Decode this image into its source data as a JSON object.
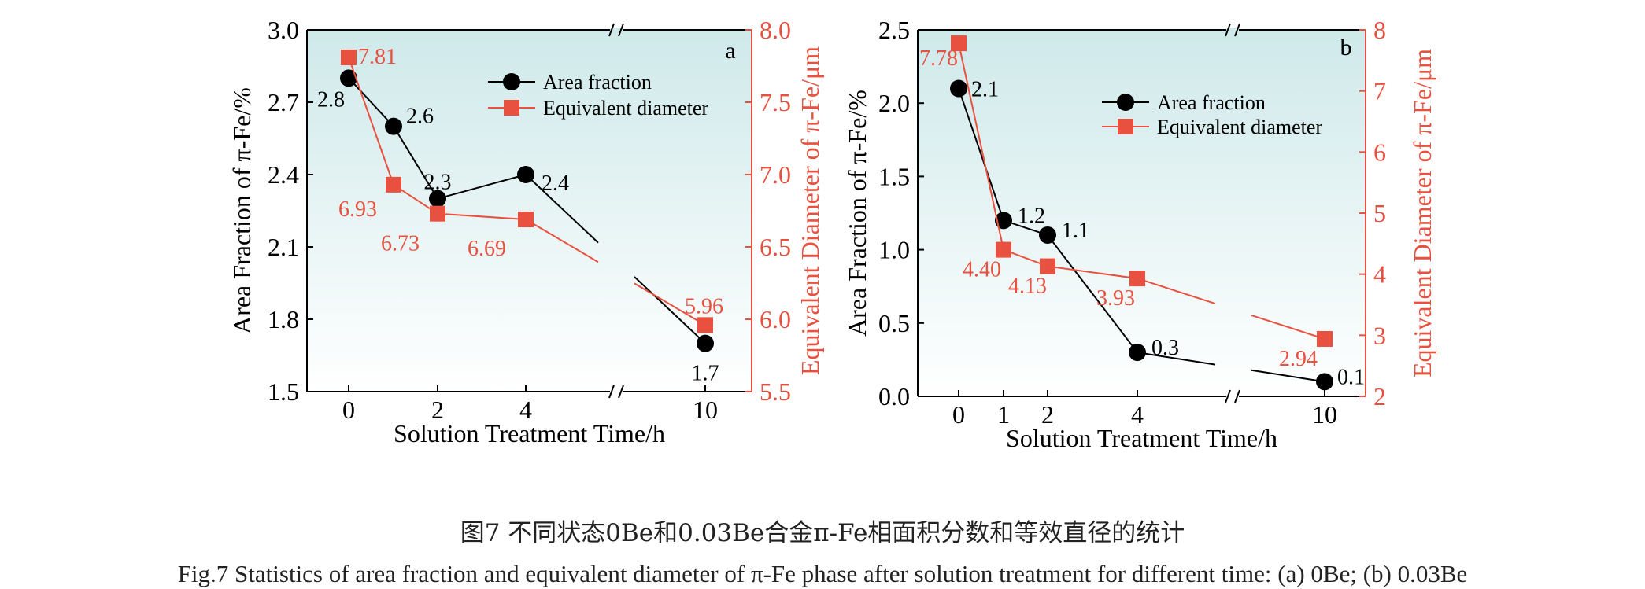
{
  "chart_data": [
    {
      "type": "line",
      "panel_label": "a",
      "x_ticks": [
        "0",
        "2",
        "4",
        "10"
      ],
      "xlabel": "Solution Treatment Time/h",
      "ylabel_left": "Area Fraction of π-Fe/%",
      "ylabel_right": "Equivalent Diameter of π-Fe/μm",
      "ylim_left": [
        1.5,
        3.0
      ],
      "ylim_right": [
        5.5,
        8.0
      ],
      "yticks_left": [
        "1.5",
        "1.8",
        "2.1",
        "2.4",
        "2.7",
        "3.0"
      ],
      "yticks_right": [
        "5.5",
        "6.0",
        "6.5",
        "7.0",
        "7.5",
        "8.0"
      ],
      "axis_break": true,
      "legend_position": "top-center",
      "series": [
        {
          "name": "Area fraction",
          "axis": "left",
          "color": "#000000",
          "marker": "circle",
          "x": [
            0,
            1,
            2,
            4,
            10
          ],
          "values": [
            2.8,
            2.6,
            2.3,
            2.4,
            1.7
          ],
          "labels": [
            "2.8",
            "2.6",
            "2.3",
            "2.4",
            "1.7"
          ]
        },
        {
          "name": "Equivalent diameter",
          "axis": "right",
          "color": "#e8513f",
          "marker": "square",
          "x": [
            0,
            1,
            2,
            4,
            10
          ],
          "values": [
            7.81,
            6.93,
            6.73,
            6.69,
            5.96
          ],
          "labels": [
            "7.81",
            "6.93",
            "6.73",
            "6.69",
            "5.96"
          ]
        }
      ]
    },
    {
      "type": "line",
      "panel_label": "b",
      "x_ticks": [
        "0",
        "1",
        "2",
        "4",
        "10"
      ],
      "xlabel": "Solution Treatment Time/h",
      "ylabel_left": "Area Fraction of π-Fe/%",
      "ylabel_right": "Equivalent Diameter of π-Fe/μm",
      "ylim_left": [
        0.0,
        2.5
      ],
      "ylim_right": [
        2,
        8
      ],
      "yticks_left": [
        "0.0",
        "0.5",
        "1.0",
        "1.5",
        "2.0",
        "2.5"
      ],
      "yticks_right": [
        "2",
        "3",
        "4",
        "5",
        "6",
        "7",
        "8"
      ],
      "axis_break": true,
      "legend_position": "top-center",
      "series": [
        {
          "name": "Area fraction",
          "axis": "left",
          "color": "#000000",
          "marker": "circle",
          "x": [
            0,
            1,
            2,
            4,
            10
          ],
          "values": [
            2.1,
            1.2,
            1.1,
            0.3,
            0.1
          ],
          "labels": [
            "2.1",
            "1.2",
            "1.1",
            "0.3",
            "0.1"
          ]
        },
        {
          "name": "Equivalent diameter",
          "axis": "right",
          "color": "#e8513f",
          "marker": "square",
          "x": [
            0,
            1,
            2,
            4,
            10
          ],
          "values": [
            7.78,
            4.4,
            4.13,
            3.93,
            2.94
          ],
          "labels": [
            "7.78",
            "4.40",
            "4.13",
            "3.93",
            "2.94"
          ]
        }
      ]
    }
  ],
  "caption": {
    "cn": "图7 不同状态0Be和0.03Be合金π-Fe相面积分数和等效直径的统计",
    "en": "Fig.7  Statistics of area fraction and equivalent diameter of π-Fe phase after solution treatment for different time: (a) 0Be; (b) 0.03Be"
  }
}
